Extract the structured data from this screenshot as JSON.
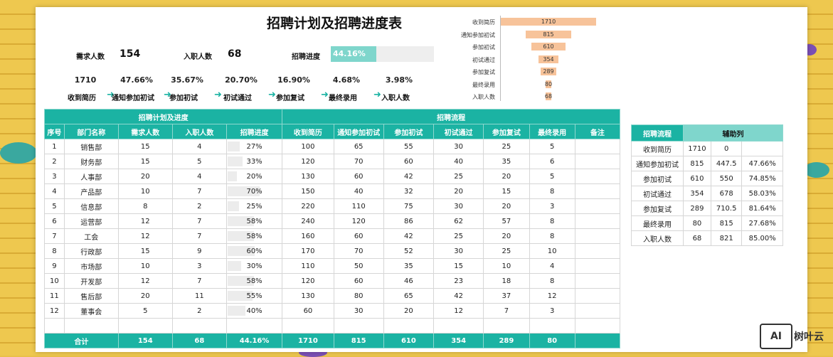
{
  "title": "招聘计划及招聘进度表",
  "summary": {
    "demand_label": "需求人数",
    "demand_value": "154",
    "hired_label": "入职人数",
    "hired_value": "68",
    "progress_label": "招聘进度",
    "progress_value": "44.16%",
    "progress_fraction": 0.4416
  },
  "stages": [
    {
      "pct": "1710",
      "name": "收到简历"
    },
    {
      "pct": "47.66%",
      "name": "通知参加初试"
    },
    {
      "pct": "35.67%",
      "name": "参加初试"
    },
    {
      "pct": "20.70%",
      "name": "初试通过"
    },
    {
      "pct": "16.90%",
      "name": "参加复试"
    },
    {
      "pct": "4.68%",
      "name": "最终录用"
    },
    {
      "pct": "3.98%",
      "name": "入职人数"
    }
  ],
  "arrow_glyph": "➜",
  "chart_data": {
    "type": "bar",
    "orientation": "horizontal-funnel",
    "categories": [
      "收到简历",
      "通知参加初试",
      "参加初试",
      "初试通过",
      "参加复试",
      "最终录用",
      "入职人数"
    ],
    "values": [
      1710,
      815,
      610,
      354,
      289,
      80,
      68
    ],
    "color": "#f7c39a"
  },
  "main_table": {
    "group_headers": [
      "招聘计划及进度",
      "招聘流程"
    ],
    "columns": [
      "序号",
      "部门名称",
      "需求人数",
      "入职人数",
      "招聘进度",
      "收到简历",
      "通知参加初试",
      "参加初试",
      "初试通过",
      "参加复试",
      "最终录用",
      "备注"
    ],
    "rows": [
      [
        "1",
        "销售部",
        "15",
        "4",
        "27%",
        "100",
        "65",
        "55",
        "30",
        "25",
        "5",
        ""
      ],
      [
        "2",
        "财务部",
        "15",
        "5",
        "33%",
        "120",
        "70",
        "60",
        "40",
        "35",
        "6",
        ""
      ],
      [
        "3",
        "人事部",
        "20",
        "4",
        "20%",
        "130",
        "60",
        "42",
        "25",
        "20",
        "5",
        ""
      ],
      [
        "4",
        "产品部",
        "10",
        "7",
        "70%",
        "150",
        "40",
        "32",
        "20",
        "15",
        "8",
        ""
      ],
      [
        "5",
        "信息部",
        "8",
        "2",
        "25%",
        "220",
        "110",
        "75",
        "30",
        "20",
        "3",
        ""
      ],
      [
        "6",
        "运营部",
        "12",
        "7",
        "58%",
        "240",
        "120",
        "86",
        "62",
        "57",
        "8",
        ""
      ],
      [
        "7",
        "工会",
        "12",
        "7",
        "58%",
        "160",
        "60",
        "42",
        "25",
        "20",
        "8",
        ""
      ],
      [
        "8",
        "行政部",
        "15",
        "9",
        "60%",
        "170",
        "70",
        "52",
        "30",
        "25",
        "10",
        ""
      ],
      [
        "9",
        "市场部",
        "10",
        "3",
        "30%",
        "110",
        "50",
        "35",
        "15",
        "10",
        "4",
        ""
      ],
      [
        "10",
        "开发部",
        "12",
        "7",
        "58%",
        "120",
        "60",
        "46",
        "23",
        "18",
        "8",
        ""
      ],
      [
        "11",
        "售后部",
        "20",
        "11",
        "55%",
        "130",
        "80",
        "65",
        "42",
        "37",
        "12",
        ""
      ],
      [
        "12",
        "董事会",
        "5",
        "2",
        "40%",
        "60",
        "30",
        "20",
        "12",
        "7",
        "3",
        ""
      ]
    ],
    "progress_fractions": [
      0.27,
      0.33,
      0.2,
      0.7,
      0.25,
      0.58,
      0.58,
      0.6,
      0.3,
      0.58,
      0.55,
      0.4
    ],
    "total": [
      "合计",
      "154",
      "68",
      "44.16%",
      "1710",
      "815",
      "610",
      "354",
      "289",
      "80"
    ]
  },
  "aux_table": {
    "headers": [
      "招聘流程",
      "辅助列"
    ],
    "rows": [
      [
        "收到简历",
        "1710",
        "0",
        ""
      ],
      [
        "通知参加初试",
        "815",
        "447.5",
        "47.66%"
      ],
      [
        "参加初试",
        "610",
        "550",
        "74.85%"
      ],
      [
        "初试通过",
        "354",
        "678",
        "58.03%"
      ],
      [
        "参加复试",
        "289",
        "710.5",
        "81.64%"
      ],
      [
        "最终录用",
        "80",
        "815",
        "27.68%"
      ],
      [
        "入职人数",
        "68",
        "821",
        "85.00%"
      ]
    ]
  },
  "logo": {
    "mark": "AI",
    "text": "树叶云"
  }
}
